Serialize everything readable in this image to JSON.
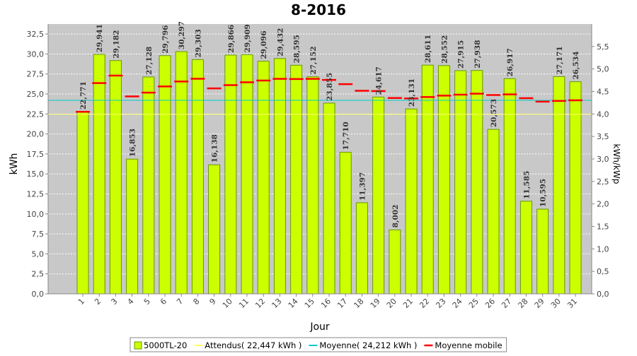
{
  "chart_data": {
    "type": "bar",
    "title": "8-2016",
    "xlabel": "Jour",
    "ylabel": "kWh",
    "y2label": "kWh/kWp",
    "ylim": [
      0,
      33.75
    ],
    "y_ticks": [
      "0,0",
      "2,5",
      "5,0",
      "7,5",
      "10,0",
      "12,5",
      "15,0",
      "17,5",
      "20,0",
      "22,5",
      "25,0",
      "27,5",
      "30,0",
      "32,5"
    ],
    "y2lim": [
      0,
      6.0
    ],
    "y2_ticks": [
      "0,0",
      "0,5",
      "1,0",
      "1,5",
      "2,0",
      "2,5",
      "3,0",
      "3,5",
      "4,0",
      "4,5",
      "5,0",
      "5,5"
    ],
    "grid": true,
    "legend_placement": "bottom",
    "categories": [
      "1",
      "2",
      "3",
      "4",
      "5",
      "6",
      "7",
      "8",
      "9",
      "10",
      "11",
      "12",
      "13",
      "14",
      "15",
      "16",
      "17",
      "18",
      "19",
      "20",
      "21",
      "22",
      "23",
      "24",
      "25",
      "26",
      "27",
      "28",
      "29",
      "30",
      "31"
    ],
    "value_labels": [
      "22,771",
      "29,941",
      "29,182",
      "16,853",
      "27,128",
      "29,796",
      "30,297",
      "29,303",
      "16,138",
      "29,866",
      "29,909",
      "29,096",
      "29,432",
      "28,595",
      "27,152",
      "23,855",
      "17,710",
      "11,397",
      "24,617",
      "8,002",
      "23,131",
      "28,611",
      "28,552",
      "27,915",
      "27,938",
      "20,573",
      "26,917",
      "11,585",
      "10,595",
      "27,171",
      "26,534"
    ],
    "series": [
      {
        "name": "5000TL-20",
        "type": "bar",
        "color": "#ccff00",
        "values": [
          22.771,
          29.941,
          29.182,
          16.853,
          27.128,
          29.796,
          30.297,
          29.303,
          16.138,
          29.866,
          29.909,
          29.096,
          29.432,
          28.595,
          27.152,
          23.855,
          17.71,
          11.397,
          24.617,
          8.002,
          23.131,
          28.611,
          28.552,
          27.915,
          27.938,
          20.573,
          26.917,
          11.585,
          10.595,
          27.171,
          26.534
        ]
      },
      {
        "name": "Moyenne mobile",
        "type": "marker",
        "color": "#ff0000",
        "values": [
          22.77,
          26.36,
          27.3,
          24.69,
          25.17,
          25.94,
          26.56,
          26.9,
          25.7,
          26.11,
          26.46,
          26.68,
          26.89,
          26.87,
          26.89,
          26.76,
          26.23,
          25.4,
          25.37,
          24.5,
          24.44,
          24.62,
          24.79,
          24.92,
          25.04,
          24.87,
          24.95,
          24.47,
          24.04,
          24.13,
          24.21
        ]
      }
    ],
    "reference_lines": [
      {
        "name": "Attendus( 22,447 kWh )",
        "value": 22.447,
        "color": "#ffff66"
      },
      {
        "name": "Moyenne( 24,212 kWh )",
        "value": 24.212,
        "color": "#00cccc"
      }
    ],
    "legend": [
      {
        "label": "5000TL-20",
        "style": "box",
        "color": "#ccff00"
      },
      {
        "label": "Attendus( 22,447 kWh )",
        "style": "line",
        "color": "#ffff66"
      },
      {
        "label": "Moyenne( 24,212 kWh )",
        "style": "line",
        "color": "#00cccc"
      },
      {
        "label": "Moyenne mobile",
        "style": "line",
        "color": "#ff0000"
      }
    ],
    "colors": {
      "plot_background": "#c8c8c8",
      "bar_fill": "#ccff00",
      "bar_border": "#669900",
      "moving_average": "#ff0000",
      "expected": "#ffff66",
      "average": "#00cccc"
    }
  }
}
